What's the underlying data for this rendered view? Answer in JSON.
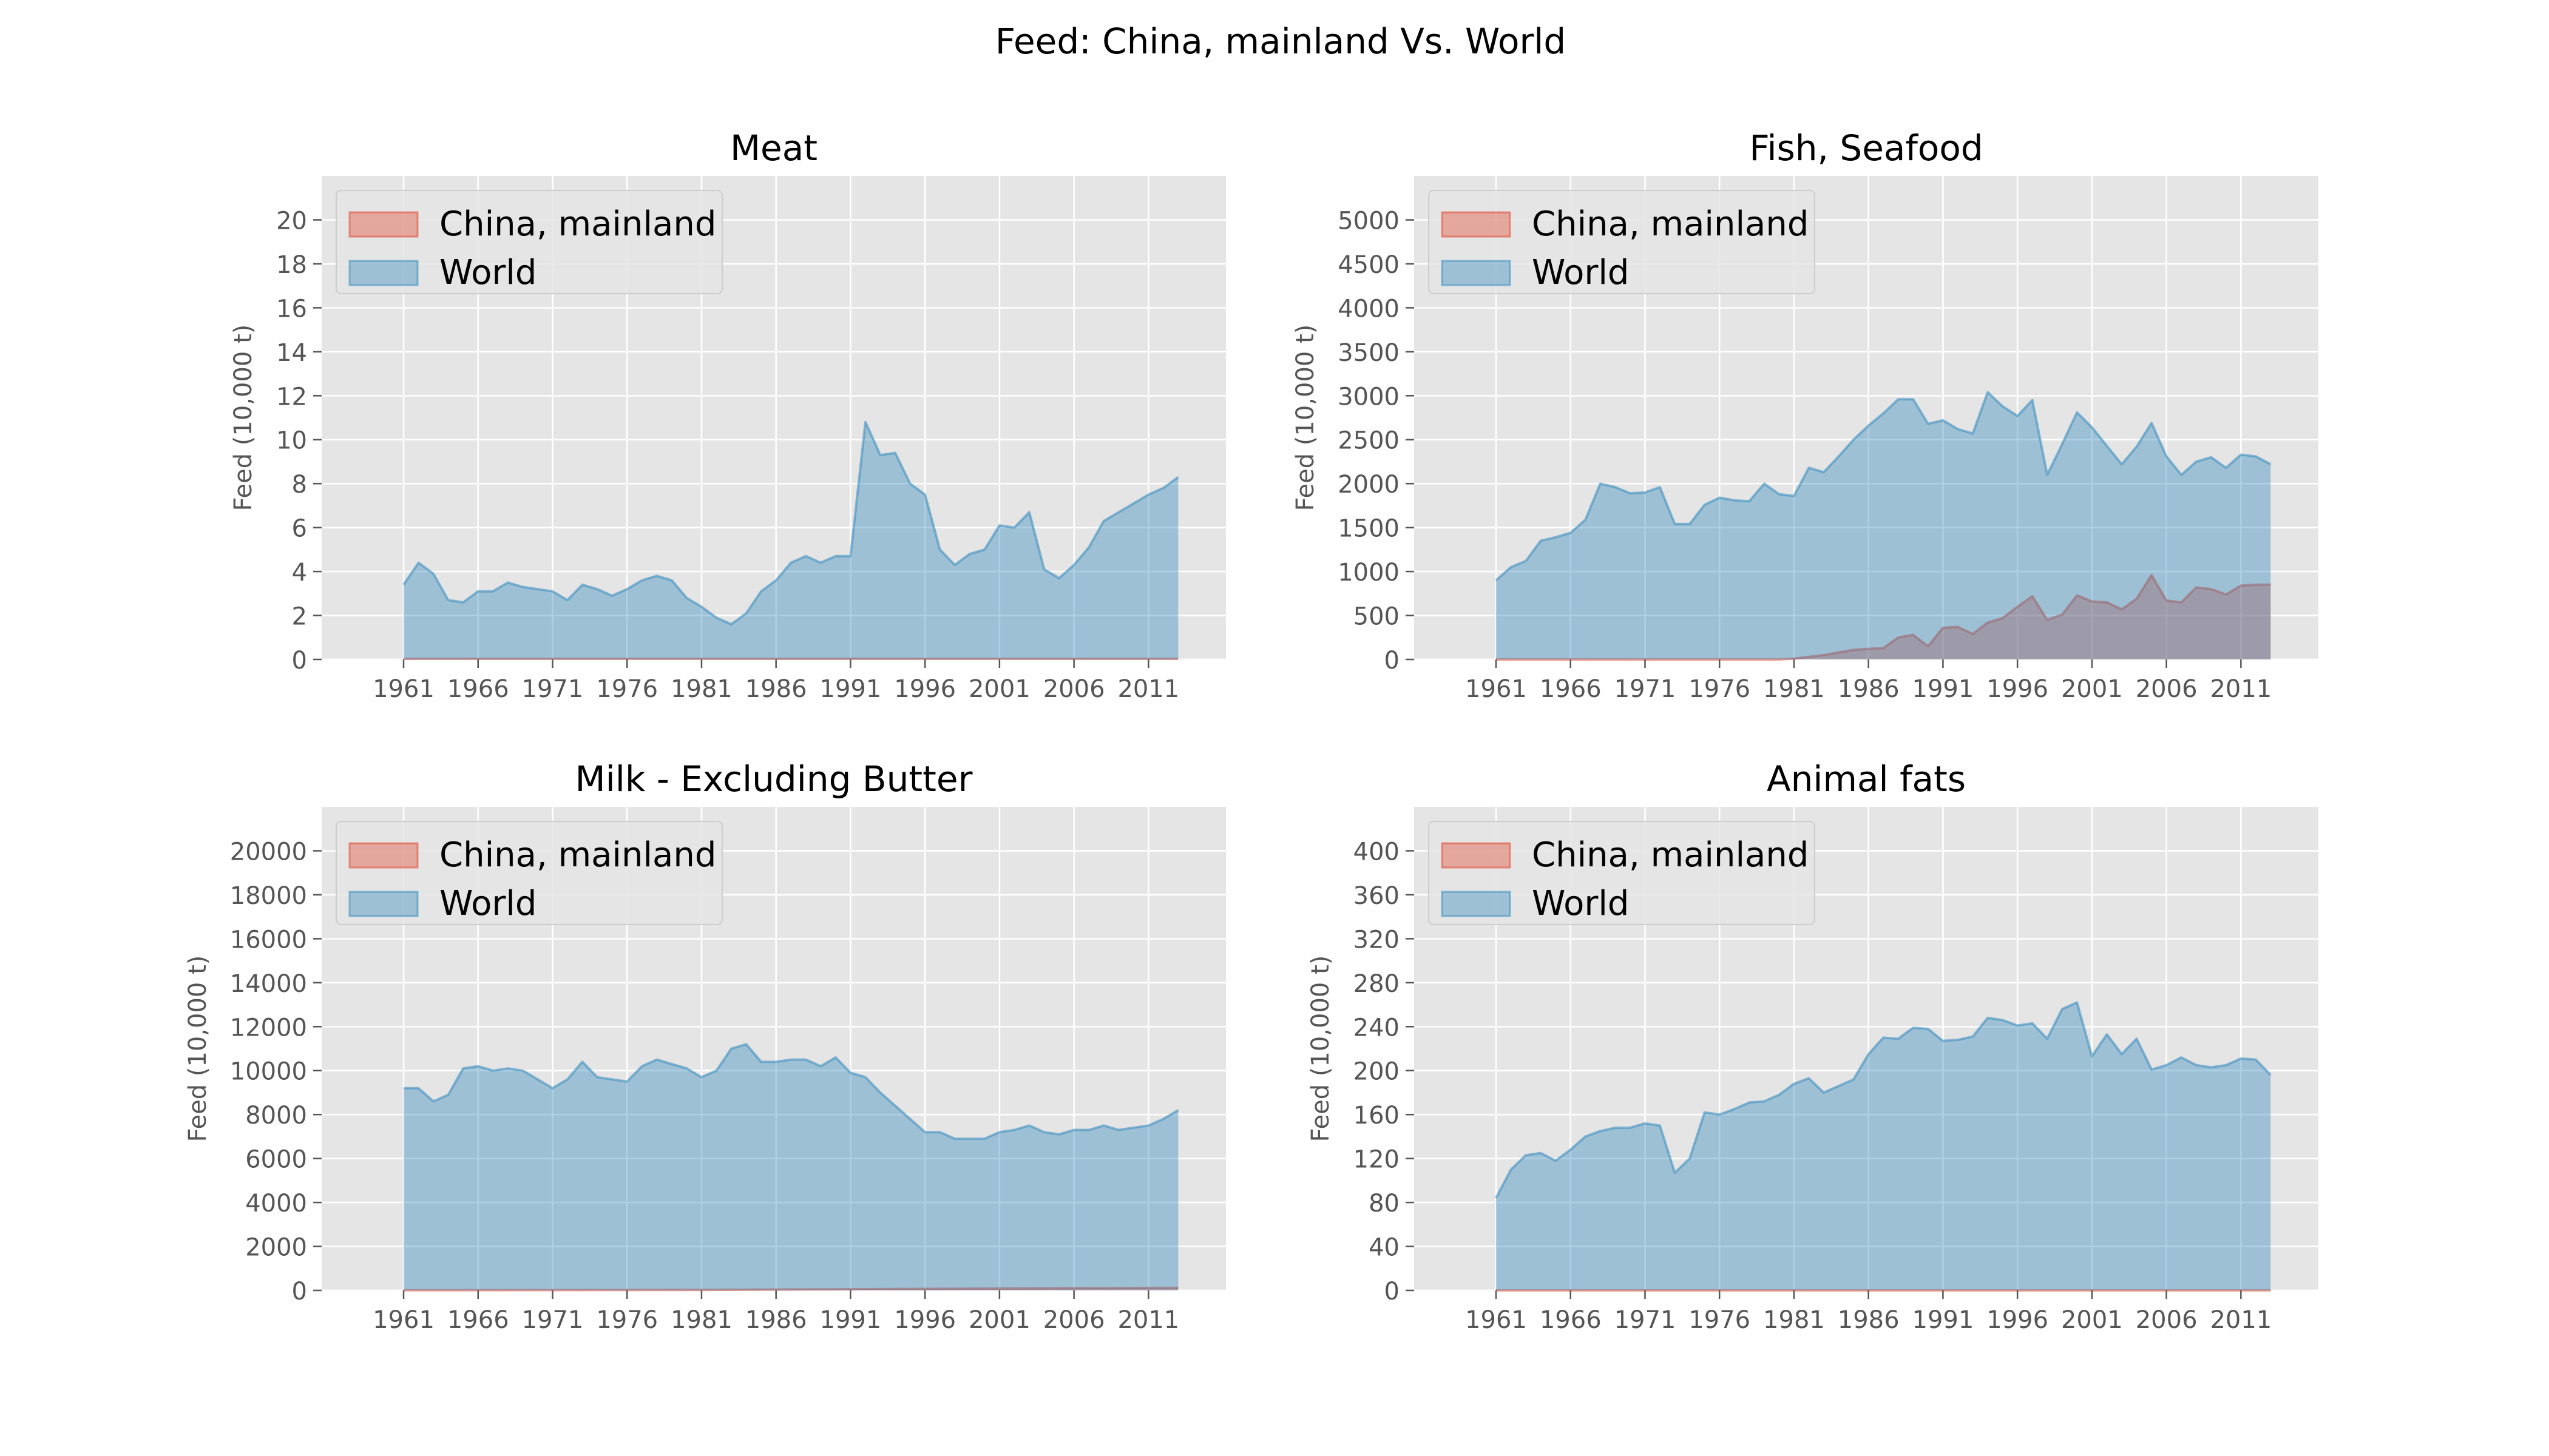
{
  "figure": {
    "title": "Feed: China, mainland Vs. World"
  },
  "colors": {
    "china": "#E24A33",
    "world": "#348ABD",
    "panel_bg": "#E5E5E5",
    "grid": "#FFFFFF",
    "tick_text": "#555555",
    "legend_bg": "#E5E5E5"
  },
  "chart_data": [
    {
      "type": "area",
      "title": "Meat",
      "ylabel": "Feed (10,000 t)",
      "xlabel": "",
      "xlim": [
        1955.5,
        2016.2
      ],
      "xticks": [
        1961,
        1966,
        1971,
        1976,
        1981,
        1986,
        1991,
        1996,
        2001,
        2006,
        2011
      ],
      "ylim": [
        0,
        22
      ],
      "yticks": [
        0,
        2,
        4,
        6,
        8,
        10,
        12,
        14,
        16,
        18,
        20
      ],
      "grid": true,
      "legend_position": "upper-left",
      "series": [
        {
          "name": "China, mainland",
          "x": [
            1961,
            2013
          ],
          "values": [
            0.03,
            0.03
          ]
        },
        {
          "name": "World",
          "x": [
            1961,
            1962,
            1963,
            1964,
            1965,
            1966,
            1967,
            1968,
            1969,
            1970,
            1971,
            1972,
            1973,
            1974,
            1975,
            1976,
            1977,
            1978,
            1979,
            1980,
            1981,
            1982,
            1983,
            1984,
            1985,
            1986,
            1987,
            1988,
            1989,
            1990,
            1991,
            1992,
            1993,
            1994,
            1995,
            1996,
            1997,
            1998,
            1999,
            2000,
            2001,
            2002,
            2003,
            2004,
            2005,
            2006,
            2007,
            2008,
            2009,
            2010,
            2011,
            2012,
            2013
          ],
          "values": [
            3.4,
            4.4,
            3.9,
            2.7,
            2.6,
            3.1,
            3.1,
            3.5,
            3.3,
            3.2,
            3.1,
            2.7,
            3.4,
            3.2,
            2.9,
            3.2,
            3.6,
            3.8,
            3.6,
            2.8,
            2.4,
            1.9,
            1.6,
            2.1,
            3.1,
            3.6,
            4.4,
            4.7,
            4.4,
            4.7,
            4.7,
            10.8,
            9.3,
            9.4,
            8.0,
            7.5,
            5.0,
            4.3,
            4.8,
            5.0,
            6.1,
            6.0,
            6.7,
            4.1,
            3.7,
            4.3,
            5.1,
            6.3,
            6.7,
            7.1,
            7.5,
            7.8,
            8.3
          ]
        }
      ]
    },
    {
      "type": "area",
      "title": "Fish, Seafood",
      "ylabel": "Feed (10,000 t)",
      "xlabel": "",
      "xlim": [
        1955.5,
        2016.2
      ],
      "xticks": [
        1961,
        1966,
        1971,
        1976,
        1981,
        1986,
        1991,
        1996,
        2001,
        2006,
        2011
      ],
      "ylim": [
        0,
        5500
      ],
      "yticks": [
        0,
        500,
        1000,
        1500,
        2000,
        2500,
        3000,
        3500,
        4000,
        4500,
        5000
      ],
      "grid": true,
      "legend_position": "upper-left",
      "series": [
        {
          "name": "China, mainland",
          "x": [
            1961,
            1980,
            1981,
            1982,
            1983,
            1984,
            1985,
            1986,
            1987,
            1988,
            1989,
            1990,
            1991,
            1992,
            1993,
            1994,
            1995,
            1996,
            1997,
            1998,
            1999,
            2000,
            2001,
            2002,
            2003,
            2004,
            2005,
            2006,
            2007,
            2008,
            2009,
            2010,
            2011,
            2012,
            2013
          ],
          "values": [
            0,
            0,
            10,
            30,
            50,
            80,
            110,
            120,
            130,
            250,
            280,
            150,
            360,
            370,
            290,
            420,
            470,
            600,
            720,
            450,
            510,
            730,
            660,
            650,
            570,
            690,
            960,
            670,
            650,
            820,
            800,
            740,
            840,
            850,
            850
          ]
        },
        {
          "name": "World",
          "x": [
            1961,
            1962,
            1963,
            1964,
            1965,
            1966,
            1967,
            1968,
            1969,
            1970,
            1971,
            1972,
            1973,
            1974,
            1975,
            1976,
            1977,
            1978,
            1979,
            1980,
            1981,
            1982,
            1983,
            1984,
            1985,
            1986,
            1987,
            1988,
            1989,
            1990,
            1991,
            1992,
            1993,
            1994,
            1995,
            1996,
            1997,
            1998,
            1999,
            2000,
            2001,
            2002,
            2003,
            2004,
            2005,
            2006,
            2007,
            2008,
            2009,
            2010,
            2011,
            2012,
            2013
          ],
          "values": [
            900,
            1050,
            1120,
            1350,
            1390,
            1440,
            1590,
            2000,
            1960,
            1890,
            1900,
            1960,
            1540,
            1540,
            1760,
            1840,
            1810,
            1800,
            2000,
            1880,
            1860,
            2180,
            2130,
            2310,
            2500,
            2660,
            2800,
            2960,
            2960,
            2680,
            2720,
            2620,
            2570,
            3040,
            2880,
            2770,
            2950,
            2100,
            2450,
            2810,
            2640,
            2430,
            2220,
            2420,
            2690,
            2310,
            2100,
            2250,
            2300,
            2180,
            2330,
            2310,
            2220
          ]
        }
      ]
    },
    {
      "type": "area",
      "title": "Milk - Excluding Butter",
      "ylabel": "Feed (10,000 t)",
      "xlabel": "",
      "xlim": [
        1955.5,
        2016.2
      ],
      "xticks": [
        1961,
        1966,
        1971,
        1976,
        1981,
        1986,
        1991,
        1996,
        2001,
        2006,
        2011
      ],
      "ylim": [
        0,
        22000
      ],
      "yticks": [
        0,
        2000,
        4000,
        6000,
        8000,
        10000,
        12000,
        14000,
        16000,
        18000,
        20000
      ],
      "grid": true,
      "legend_position": "upper-left",
      "series": [
        {
          "name": "China, mainland",
          "x": [
            1961,
            1980,
            1990,
            2000,
            2013
          ],
          "values": [
            5,
            20,
            50,
            80,
            120
          ]
        },
        {
          "name": "World",
          "x": [
            1961,
            1962,
            1963,
            1964,
            1965,
            1966,
            1967,
            1968,
            1969,
            1970,
            1971,
            1972,
            1973,
            1974,
            1975,
            1976,
            1977,
            1978,
            1979,
            1980,
            1981,
            1982,
            1983,
            1984,
            1985,
            1986,
            1987,
            1988,
            1989,
            1990,
            1991,
            1992,
            1993,
            1994,
            1995,
            1996,
            1997,
            1998,
            1999,
            2000,
            2001,
            2002,
            2003,
            2004,
            2005,
            2006,
            2007,
            2008,
            2009,
            2010,
            2011,
            2012,
            2013
          ],
          "values": [
            9200,
            9200,
            8600,
            8900,
            10100,
            10200,
            10000,
            10100,
            10000,
            9600,
            9200,
            9600,
            10400,
            9700,
            9600,
            9500,
            10200,
            10500,
            10300,
            10100,
            9700,
            10000,
            11000,
            11200,
            10400,
            10400,
            10500,
            10500,
            10200,
            10600,
            9900,
            9700,
            9000,
            8400,
            7800,
            7200,
            7200,
            6900,
            6900,
            6900,
            7200,
            7300,
            7500,
            7200,
            7100,
            7300,
            7300,
            7500,
            7300,
            7400,
            7500,
            7800,
            8200
          ]
        }
      ]
    },
    {
      "type": "area",
      "title": "Animal fats",
      "ylabel": "Feed (10,000 t)",
      "xlabel": "",
      "xlim": [
        1955.5,
        2016.2
      ],
      "xticks": [
        1961,
        1966,
        1971,
        1976,
        1981,
        1986,
        1991,
        1996,
        2001,
        2006,
        2011
      ],
      "ylim": [
        0,
        440
      ],
      "yticks": [
        0,
        40,
        80,
        120,
        160,
        200,
        240,
        280,
        320,
        360,
        400
      ],
      "grid": true,
      "legend_position": "upper-left",
      "series": [
        {
          "name": "China, mainland",
          "x": [
            1961,
            2013
          ],
          "values": [
            0,
            0
          ]
        },
        {
          "name": "World",
          "x": [
            1961,
            1962,
            1963,
            1964,
            1965,
            1966,
            1967,
            1968,
            1969,
            1970,
            1971,
            1972,
            1973,
            1974,
            1975,
            1976,
            1977,
            1978,
            1979,
            1980,
            1981,
            1982,
            1983,
            1984,
            1985,
            1986,
            1987,
            1988,
            1989,
            1990,
            1991,
            1992,
            1993,
            1994,
            1995,
            1996,
            1997,
            1998,
            1999,
            2000,
            2001,
            2002,
            2003,
            2004,
            2005,
            2006,
            2007,
            2008,
            2009,
            2010,
            2011,
            2012,
            2013
          ],
          "values": [
            84,
            110,
            123,
            125,
            118,
            128,
            140,
            145,
            148,
            148,
            152,
            150,
            107,
            120,
            162,
            160,
            165,
            171,
            172,
            178,
            188,
            193,
            180,
            186,
            192,
            215,
            230,
            229,
            239,
            238,
            227,
            228,
            231,
            248,
            246,
            241,
            243,
            229,
            256,
            262,
            213,
            233,
            215,
            229,
            201,
            205,
            212,
            205,
            203,
            205,
            211,
            210,
            196
          ]
        }
      ]
    }
  ]
}
